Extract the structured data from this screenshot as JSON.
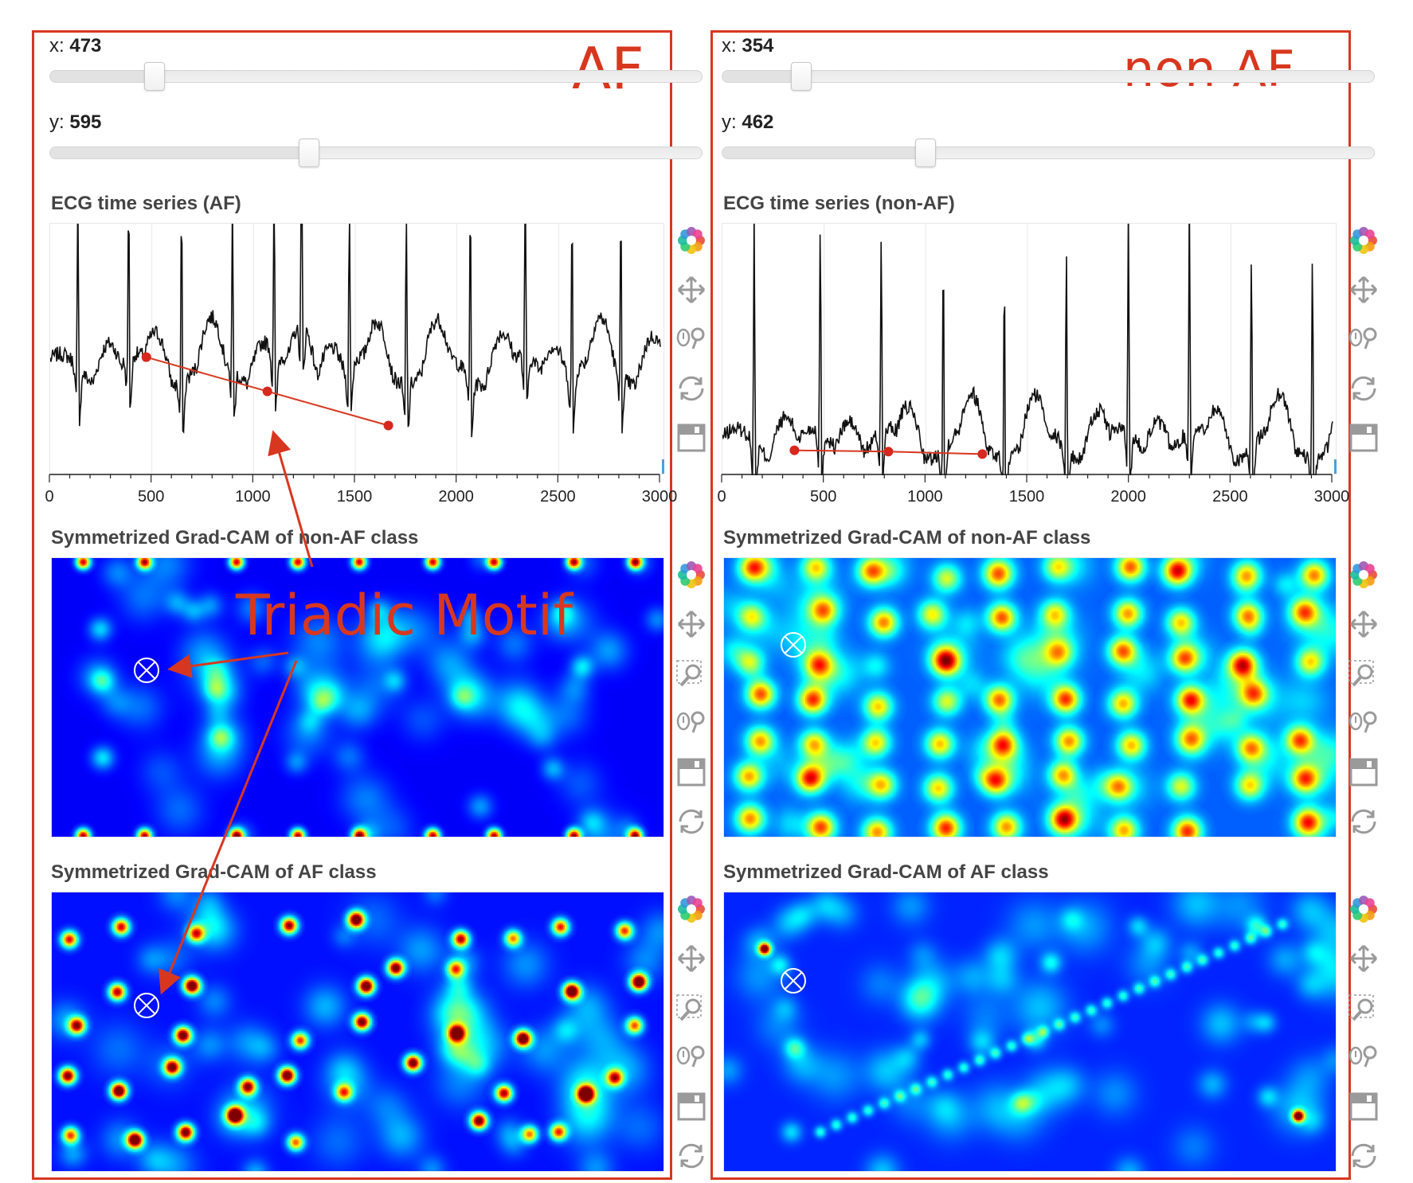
{
  "panels": [
    {
      "id": "af",
      "label": "AF",
      "x_slider": {
        "label": "x: ",
        "value": "473",
        "fraction": 0.165
      },
      "y_slider": {
        "label": "y: ",
        "value": "595",
        "fraction": 0.41
      },
      "ecg_title": "ECG time series (AF)",
      "nonaf_title": "Symmetrized Grad-CAM of non-AF class",
      "af_title": "Symmetrized Grad-CAM of AF class",
      "ticks": [
        "0",
        "500",
        "1000",
        "1500",
        "2000",
        "2500",
        "3000"
      ],
      "motif_points": [
        {
          "x": 473,
          "y": 0.2
        },
        {
          "x": 1068,
          "y": -0.35
        },
        {
          "x": 1663,
          "y": -0.9
        }
      ],
      "marker_icon": "circled-times-icon"
    },
    {
      "id": "nonaf",
      "label": "non-AF",
      "x_slider": {
        "label": "x: ",
        "value": "354",
        "fraction": 0.12
      },
      "y_slider": {
        "label": "y: ",
        "value": "462",
        "fraction": 0.31
      },
      "ecg_title": "ECG time series (non-AF)",
      "nonaf_title": "Symmetrized Grad-CAM of non-AF class",
      "af_title": "Symmetrized Grad-CAM of AF class",
      "ticks": [
        "0",
        "500",
        "1000",
        "1500",
        "2000",
        "2500",
        "3000"
      ],
      "motif_points": [
        {
          "x": 354,
          "y": -1.3
        },
        {
          "x": 816,
          "y": -1.32
        },
        {
          "x": 1278,
          "y": -1.36
        }
      ],
      "marker_icon": "circled-times-icon"
    }
  ],
  "annotation": {
    "text": "Triadic Motif",
    "color": "#d8371f"
  },
  "toolbar_tools": [
    "logo-icon",
    "pan-icon",
    "box-zoom-icon",
    "wheel-zoom-icon",
    "save-icon",
    "reset-icon"
  ],
  "colors": {
    "accent": "#d8371f",
    "heat_low": "#00008b",
    "heat_mid": "#0a3dff",
    "heat_high": "#ffff00"
  }
}
